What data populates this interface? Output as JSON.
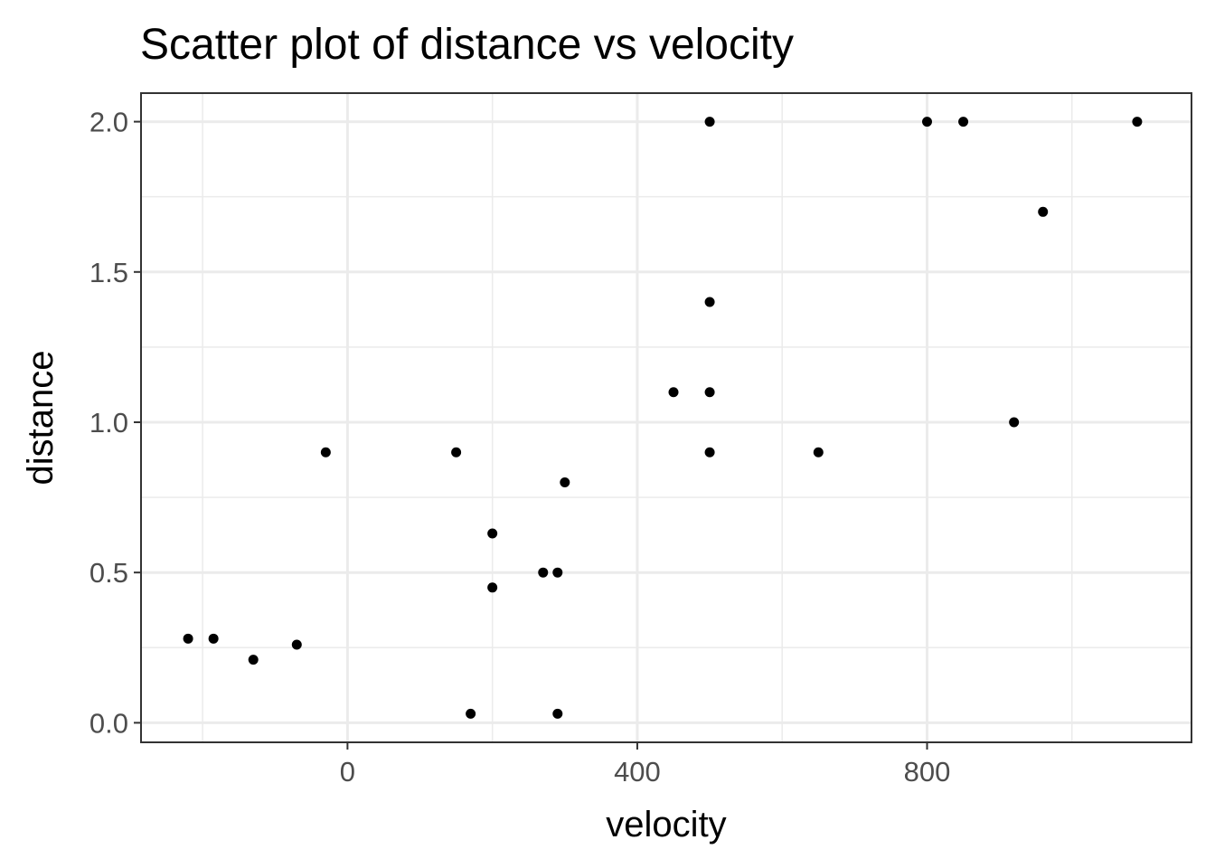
{
  "chart_data": {
    "type": "scatter",
    "title": "Scatter plot of distance vs velocity",
    "xlabel": "velocity",
    "ylabel": "distance",
    "xlim": [
      -285,
      1165
    ],
    "ylim": [
      -0.065,
      2.095
    ],
    "x_ticks": [
      0,
      400,
      800
    ],
    "x_tick_labels": [
      "0",
      "400",
      "800"
    ],
    "y_ticks": [
      0.0,
      0.5,
      1.0,
      1.5,
      2.0
    ],
    "y_tick_labels": [
      "0.0",
      "0.5",
      "1.0",
      "1.5",
      "2.0"
    ],
    "x_minor_grid": [
      -200,
      200,
      600,
      1000
    ],
    "y_minor_grid": [
      0.25,
      0.75,
      1.25,
      1.75
    ],
    "grid": true,
    "legend": "none",
    "colors": {
      "panel_background": "#ffffff",
      "panel_border": "#333333",
      "grid_major": "#ebebeb",
      "grid_minor": "#ebebeb",
      "point": "#000000",
      "tick_label": "#4d4d4d"
    },
    "x": [
      -220,
      -185,
      -130,
      -70,
      -30,
      150,
      170,
      200,
      200,
      270,
      290,
      290,
      300,
      450,
      500,
      500,
      500,
      500,
      650,
      800,
      850,
      920,
      960,
      1090
    ],
    "y": [
      0.28,
      0.28,
      0.21,
      0.26,
      0.9,
      0.9,
      0.03,
      0.63,
      0.45,
      0.5,
      0.5,
      0.03,
      0.8,
      1.1,
      2.0,
      1.4,
      1.1,
      0.9,
      0.9,
      2.0,
      2.0,
      1.0,
      1.7,
      2.0
    ]
  }
}
